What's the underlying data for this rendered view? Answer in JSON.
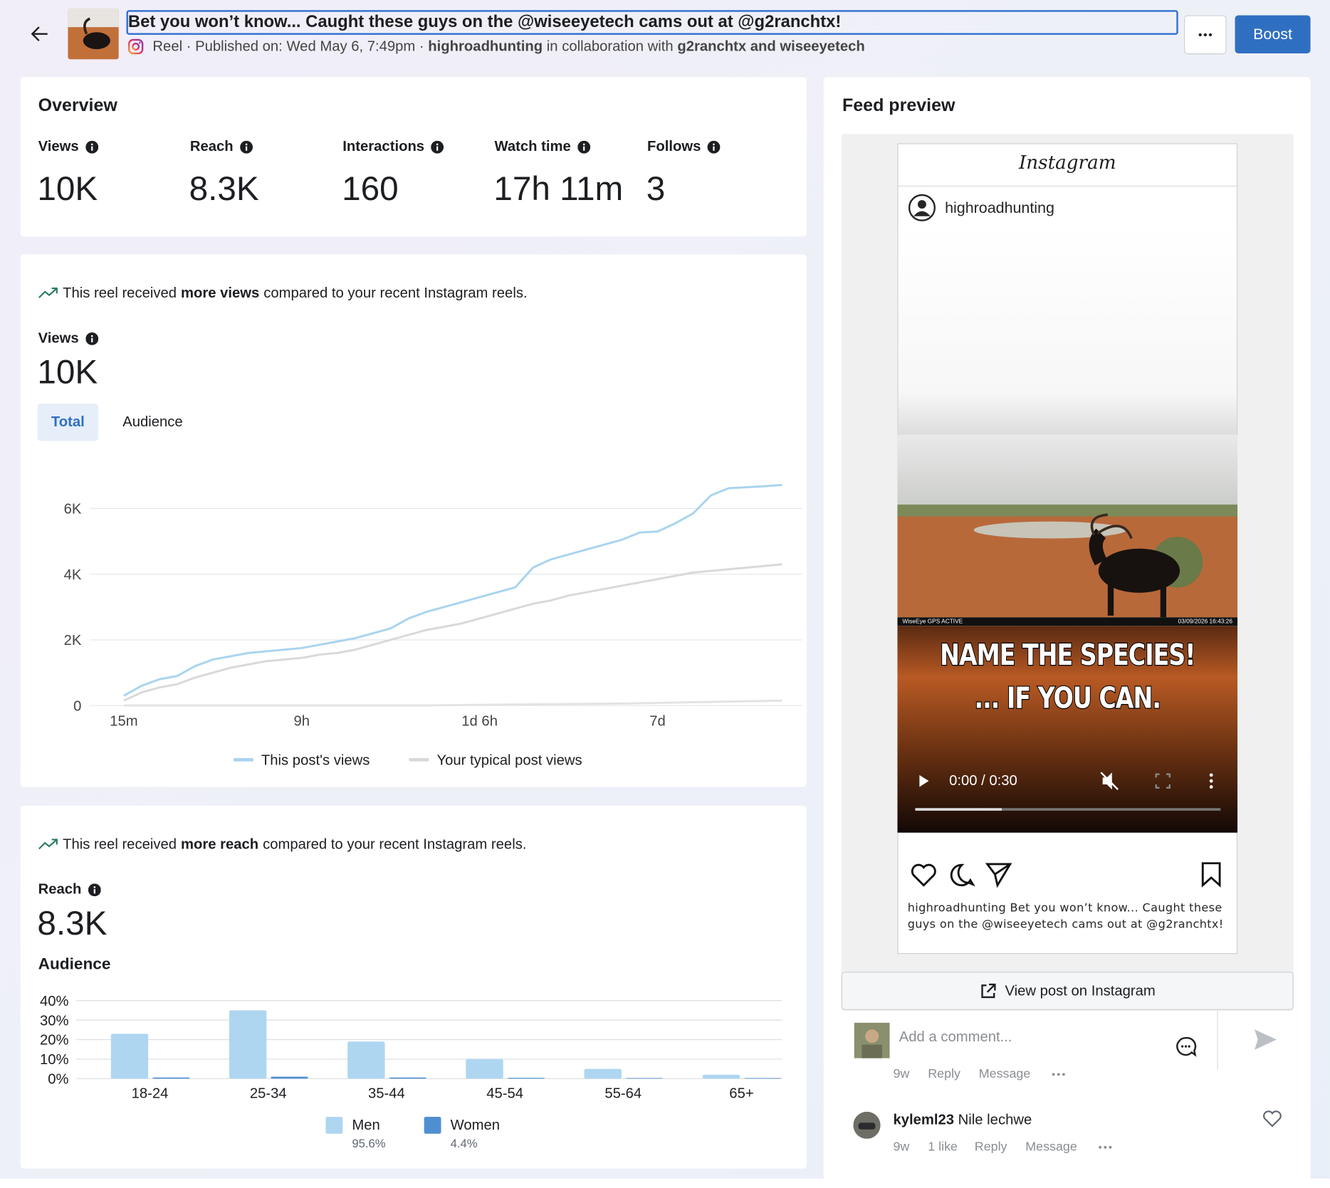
{
  "header": {
    "title": "Bet you won’t know... Caught these guys on the @wiseeyetech cams out at @g2ranchtx!",
    "meta": "Reel · Published on: Wed May 6, 7:49pm ·",
    "author": "highroadhunting",
    "collab_text": "in collaboration with",
    "collaborators": "g2ranchtx and wiseeyetech",
    "boost": "Boost"
  },
  "overview": {
    "title": "Overview",
    "metrics": [
      {
        "label": "Views",
        "value": "10K"
      },
      {
        "label": "Reach",
        "value": "8.3K"
      },
      {
        "label": "Interactions",
        "value": "160"
      },
      {
        "label": "Watch time",
        "value": "17h 11m"
      },
      {
        "label": "Follows",
        "value": "3"
      }
    ]
  },
  "views": {
    "note": [
      "This reel received",
      "more views",
      "compared to your recent Instagram reels."
    ],
    "label": "Views",
    "value": "10K",
    "tabs": [
      "Total",
      "Audience"
    ],
    "chart": {
      "type": "line",
      "categories": [
        "15m",
        null,
        null,
        null,
        null,
        null,
        null,
        null,
        null,
        null,
        "9h",
        null,
        null,
        null,
        null,
        null,
        null,
        null,
        null,
        null,
        "1d 6h",
        null,
        null,
        null,
        null,
        null,
        null,
        null,
        null,
        null,
        "7d",
        null,
        null,
        null,
        null,
        null,
        null,
        null
      ],
      "series": [
        {
          "name": "This post's views",
          "color": "#a9d4ef",
          "values": [
            300,
            600,
            800,
            900,
            1200,
            1400,
            1500,
            1600,
            1650,
            1700,
            1750,
            1850,
            1950,
            2050,
            2200,
            2350,
            2650,
            2850,
            3000,
            3150,
            3300,
            3450,
            3600,
            4200,
            4450,
            4600,
            4750,
            4900,
            5050,
            5270,
            5300,
            5550,
            5850,
            6400,
            6620,
            6650,
            6680,
            6720
          ]
        },
        {
          "name": "Your typical post views",
          "color": "#d9d9d9",
          "values": [
            150,
            400,
            550,
            650,
            850,
            1000,
            1150,
            1250,
            1350,
            1400,
            1450,
            1550,
            1600,
            1700,
            1850,
            2000,
            2150,
            2300,
            2400,
            2500,
            2650,
            2800,
            2950,
            3100,
            3200,
            3350,
            3450,
            3550,
            3650,
            3750,
            3850,
            3950,
            4050,
            4100,
            4150,
            4200,
            4250,
            4300
          ]
        },
        {
          "color": "#e3e3e3",
          "values": [
            0,
            0,
            0,
            0,
            0,
            0,
            0,
            0,
            0,
            0,
            0,
            0,
            0,
            0,
            0,
            0,
            0,
            0,
            10,
            15,
            20,
            25,
            30,
            35,
            40,
            45,
            50,
            55,
            60,
            70,
            80,
            90,
            100,
            110,
            120,
            130,
            140,
            150
          ]
        }
      ],
      "ylim": [
        0,
        7000
      ],
      "yticks": [
        0,
        {
          "value": 2000,
          "label": "2K"
        },
        {
          "value": 4000,
          "label": "4K"
        },
        {
          "value": 6000,
          "label": "6K"
        }
      ],
      "grid": true
    }
  },
  "reach": {
    "note": [
      "This reel received",
      "more reach",
      "compared to your recent Instagram reels."
    ],
    "label": "Reach",
    "value": "8.3K",
    "subtitle": "Audience",
    "chart": {
      "type": "bar",
      "categories": [
        "18-24",
        "25-34",
        "35-44",
        "45-54",
        "55-64",
        "65+"
      ],
      "series": [
        {
          "name": "Men",
          "color": "#aed6f1",
          "share": {
            "value": 95.6,
            "label": "95.6%"
          },
          "values": [
            23,
            35,
            19,
            10,
            5,
            2
          ]
        },
        {
          "name": "Women",
          "color": "#4f8fd1",
          "share": {
            "value": 4.4,
            "label": "4.4%"
          },
          "values": [
            0.6,
            1,
            0.6,
            0.4,
            0.3,
            0.3
          ]
        }
      ],
      "ylim": [
        0,
        40
      ],
      "yticks": [
        {
          "value": 0,
          "label": "0%"
        },
        {
          "value": 10,
          "label": "10%"
        },
        {
          "value": 20,
          "label": "20%"
        },
        {
          "value": 30,
          "label": "30%"
        },
        {
          "value": 40,
          "label": "40%"
        }
      ],
      "grid": true
    }
  },
  "feed": {
    "title": "Feed preview",
    "logo": "Instagram",
    "username": "highroadhunting",
    "camera_left": "WiseEye GPS ACTIVE",
    "camera_right": "03/09/2026 16:43:26",
    "overlay": [
      "NAME THE SPECIES!",
      "... IF YOU CAN."
    ],
    "time": "0:00 / 0:30",
    "caption": "highroadhunting Bet you won’t know... Caught these guys on the @wiseeyetech cams out at @g2ranchtx!",
    "view_button": "View post on Instagram",
    "comment_placeholder": "Add a comment...",
    "composer_meta": [
      "9w",
      "Reply",
      "Message"
    ],
    "comments": [
      {
        "user": "kyleml23",
        "text": "Nile lechwe",
        "meta": [
          "9w",
          "1 like",
          "Reply",
          "Message"
        ]
      }
    ]
  }
}
